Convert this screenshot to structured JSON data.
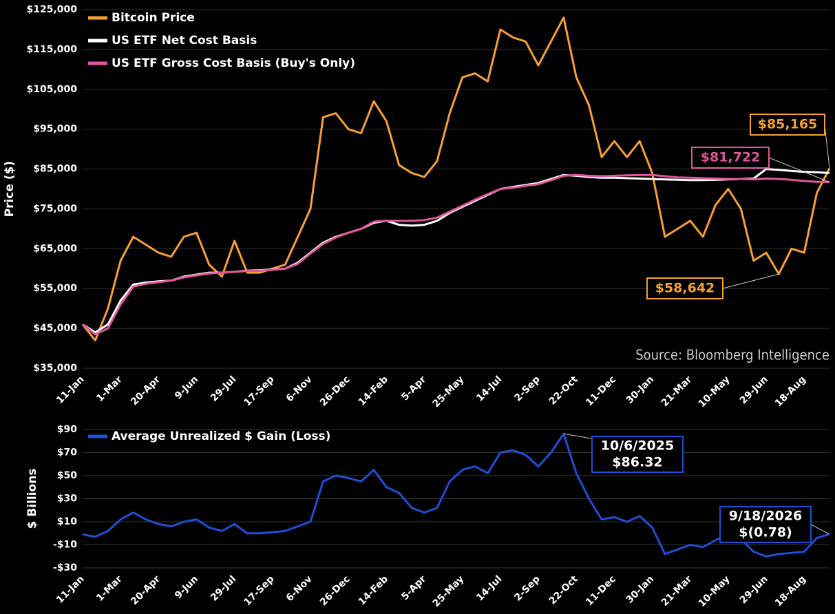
{
  "chart_data": [
    {
      "type": "line",
      "y_label": "Price ($)",
      "source": "Source: Bloomberg Intelligence",
      "categories": [
        "11-Jan",
        null,
        null,
        "1-Mar",
        null,
        null,
        "20-Apr",
        null,
        null,
        "9-Jun",
        null,
        null,
        "29-Jul",
        null,
        null,
        "17-Sep",
        null,
        null,
        "6-Nov",
        null,
        null,
        "26-Dec",
        null,
        null,
        "14-Feb",
        null,
        null,
        "5-Apr",
        null,
        null,
        "25-May",
        null,
        null,
        "14-Jul",
        null,
        null,
        "2-Sep",
        null,
        null,
        "22-Oct",
        null,
        null,
        "11-Dec",
        null,
        null,
        "30-Jan",
        null,
        null,
        "21-Mar",
        null,
        null,
        "10-May",
        null,
        null,
        "29-Jun",
        null,
        null,
        "18-Aug",
        null,
        null
      ],
      "series": [
        {
          "name": "Bitcoin Price",
          "color": "#f7a035",
          "values": [
            46000,
            42000,
            50000,
            62000,
            68000,
            66000,
            64000,
            63000,
            68000,
            69000,
            61000,
            58000,
            67000,
            59000,
            59000,
            60000,
            61000,
            68000,
            75000,
            98000,
            99000,
            95000,
            94000,
            102000,
            97000,
            86000,
            84000,
            83000,
            87000,
            99000,
            108000,
            109000,
            107000,
            120000,
            118000,
            117000,
            111000,
            117000,
            123000,
            108000,
            101000,
            88000,
            92000,
            88000,
            92000,
            84000,
            68000,
            70000,
            72000,
            68000,
            76000,
            80000,
            75000,
            62000,
            64000,
            58642,
            65000,
            64000,
            79000,
            85165
          ]
        },
        {
          "name": "US ETF Net Cost Basis",
          "color": "#ffffff",
          "values": [
            46000,
            44000,
            46000,
            52000,
            56000,
            56500,
            56800,
            57000,
            58000,
            58500,
            59000,
            59000,
            59200,
            59500,
            59600,
            59800,
            60000,
            61500,
            64000,
            66500,
            68000,
            69000,
            70000,
            71500,
            72000,
            71000,
            70800,
            71000,
            72000,
            74000,
            75500,
            77000,
            78500,
            80000,
            80500,
            81000,
            81500,
            82500,
            83500,
            83300,
            83000,
            82800,
            82800,
            82700,
            82600,
            82500,
            82400,
            82300,
            82200,
            82200,
            82300,
            82400,
            82500,
            82600,
            85000,
            84800,
            84500,
            84300,
            84200,
            84000
          ]
        },
        {
          "name": "US ETF Gross Cost Basis (Buy's Only)",
          "color": "#e0569c",
          "values": [
            46000,
            43500,
            45000,
            51000,
            55500,
            56200,
            56600,
            57000,
            57800,
            58300,
            58800,
            59000,
            59200,
            59400,
            59500,
            59700,
            60000,
            61200,
            63800,
            66200,
            67800,
            69000,
            70000,
            71800,
            72000,
            72000,
            72000,
            72200,
            72800,
            74300,
            75800,
            77300,
            78700,
            80000,
            80300,
            80800,
            81200,
            82200,
            83300,
            83500,
            83300,
            83200,
            83300,
            83400,
            83500,
            83500,
            83200,
            82900,
            82800,
            82700,
            82600,
            82500,
            82500,
            82400,
            82600,
            82500,
            82300,
            82000,
            81800,
            81722
          ]
        }
      ],
      "annotations": [
        {
          "label": "$85,165",
          "value": 85165,
          "color": "#f7a035"
        },
        {
          "label": "$81,722",
          "value": 81722,
          "color": "#e0569c"
        },
        {
          "label": "$58,642",
          "value": 58642,
          "color": "#f7a035"
        }
      ],
      "ylim": [
        35000,
        125000
      ],
      "yticks": [
        {
          "value": 35000,
          "label": "$35,000"
        },
        {
          "value": 45000,
          "label": "$45,000"
        },
        {
          "value": 55000,
          "label": "$55,000"
        },
        {
          "value": 65000,
          "label": "$65,000"
        },
        {
          "value": 75000,
          "label": "$75,000"
        },
        {
          "value": 85000,
          "label": "$85,000"
        },
        {
          "value": 95000,
          "label": "$95,000"
        },
        {
          "value": 105000,
          "label": "$105,000"
        },
        {
          "value": 115000,
          "label": "$115,000"
        },
        {
          "value": 125000,
          "label": "$125,000"
        }
      ],
      "grid": true
    },
    {
      "type": "line",
      "y_label": "$ Billions",
      "categories": [
        "11-Jan",
        null,
        null,
        "1-Mar",
        null,
        null,
        "20-Apr",
        null,
        null,
        "9-Jun",
        null,
        null,
        "29-Jul",
        null,
        null,
        "17-Sep",
        null,
        null,
        "6-Nov",
        null,
        null,
        "26-Dec",
        null,
        null,
        "14-Feb",
        null,
        null,
        "5-Apr",
        null,
        null,
        "25-May",
        null,
        null,
        "14-Jul",
        null,
        null,
        "2-Sep",
        null,
        null,
        "22-Oct",
        null,
        null,
        "11-Dec",
        null,
        null,
        "30-Jan",
        null,
        null,
        "21-Mar",
        null,
        null,
        "10-May",
        null,
        null,
        "29-Jun",
        null,
        null,
        "18-Aug",
        null,
        null
      ],
      "series": [
        {
          "name": "Average Unrealized $ Gain (Loss)",
          "color": "#1f4fd8",
          "values": [
            -1,
            -3,
            2,
            12,
            18,
            12,
            8,
            6,
            10,
            12,
            5,
            2,
            8,
            0,
            0,
            1,
            2,
            6,
            10,
            45,
            50,
            48,
            45,
            55,
            40,
            35,
            22,
            18,
            22,
            45,
            55,
            58,
            52,
            70,
            72,
            68,
            58,
            70,
            86.32,
            52,
            30,
            12,
            14,
            10,
            15,
            5,
            -18,
            -14,
            -10,
            -12,
            -6,
            -1,
            -5,
            -16,
            -20,
            -18,
            -17,
            -16,
            -4,
            -0.78
          ]
        }
      ],
      "annotations": [
        {
          "date": "10/6/2025",
          "label": "$86.32",
          "value": 86.32,
          "color": "#1f4fd8"
        },
        {
          "date": "9/18/2026",
          "label": "$(0.78)",
          "value": -0.78,
          "color": "#1f4fd8"
        }
      ],
      "ylim": [
        -30,
        90
      ],
      "yticks": [
        {
          "value": -30,
          "label": "-$30"
        },
        {
          "value": -10,
          "label": "-$10"
        },
        {
          "value": 10,
          "label": "$10"
        },
        {
          "value": 30,
          "label": "$30"
        },
        {
          "value": 50,
          "label": "$50"
        },
        {
          "value": 70,
          "label": "$70"
        },
        {
          "value": 90,
          "label": "$90"
        }
      ],
      "grid": true
    }
  ]
}
